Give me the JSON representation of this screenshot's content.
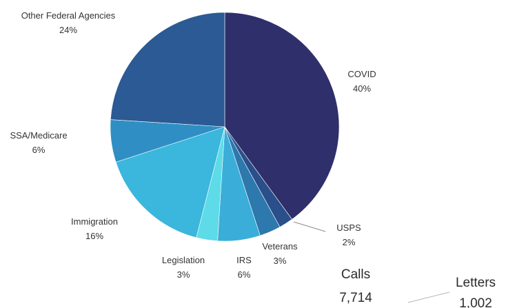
{
  "chart_data": {
    "type": "pie",
    "slices": [
      {
        "label": "COVID",
        "value": 40,
        "value_label": "40%",
        "color": "#2f2f6b"
      },
      {
        "label": "USPS",
        "value": 2,
        "value_label": "2%",
        "color": "#2a4f8a"
      },
      {
        "label": "Veterans",
        "value": 3,
        "value_label": "3%",
        "color": "#2d78ad"
      },
      {
        "label": "IRS",
        "value": 6,
        "value_label": "6%",
        "color": "#3aaed8"
      },
      {
        "label": "Legislation",
        "value": 3,
        "value_label": "3%",
        "color": "#5ddbe8"
      },
      {
        "label": "Immigration",
        "value": 16,
        "value_label": "16%",
        "color": "#3bb6dc"
      },
      {
        "label": "SSA/Medicare",
        "value": 6,
        "value_label": "6%",
        "color": "#2f8fc4"
      },
      {
        "label": "Other Federal Agencies",
        "value": 24,
        "value_label": "24%",
        "color": "#2b5a94"
      }
    ]
  },
  "annotations": {
    "calls_label": "Calls",
    "calls_value": "7,714",
    "letters_label": "Letters",
    "letters_value": "1,002"
  }
}
